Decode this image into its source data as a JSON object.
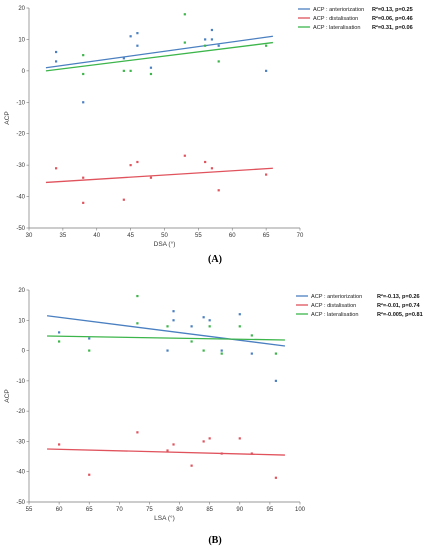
{
  "colors": {
    "anteriorization": "#4a7fc1",
    "distalisation": "#e0535d",
    "lateralisation": "#3cb54a",
    "axis": "#777777",
    "grid": "#cccccc"
  },
  "chart_data": [
    {
      "type": "scatter",
      "panel_label": "(A)",
      "xlabel": "DSA (°)",
      "ylabel": "ACP",
      "xlim": [
        30,
        70
      ],
      "ylim": [
        -50,
        20
      ],
      "xticks": [
        30,
        35,
        40,
        45,
        50,
        55,
        60,
        65,
        70
      ],
      "yticks": [
        20,
        10,
        0,
        -10,
        -20,
        -30,
        -40,
        -50
      ],
      "grid": false,
      "legend_position": "top-right",
      "series": [
        {
          "name": "ACP : anteriorization",
          "stat": "R²=0.13, p=0.25",
          "color": "#4a7fc1",
          "points": [
            [
              34,
              6
            ],
            [
              34,
              3
            ],
            [
              38,
              -10
            ],
            [
              44,
              4
            ],
            [
              45,
              11
            ],
            [
              46,
              12
            ],
            [
              46,
              8
            ],
            [
              48,
              1
            ],
            [
              56,
              10
            ],
            [
              57,
              13
            ],
            [
              57,
              10
            ],
            [
              58,
              8
            ],
            [
              65,
              0
            ]
          ],
          "fit": [
            [
              32.5,
              1
            ],
            [
              66,
              11
            ]
          ]
        },
        {
          "name": "ACP : distalisation",
          "stat": "R²=0.06, p=0.46",
          "color": "#e0535d",
          "points": [
            [
              34,
              -31
            ],
            [
              38,
              -34
            ],
            [
              38,
              -42
            ],
            [
              44,
              -41
            ],
            [
              45,
              -30
            ],
            [
              46,
              -29
            ],
            [
              48,
              -34
            ],
            [
              53,
              -27
            ],
            [
              56,
              -29
            ],
            [
              57,
              -31
            ],
            [
              58,
              -38
            ],
            [
              65,
              -33
            ]
          ],
          "fit": [
            [
              32.5,
              -35.5
            ],
            [
              66,
              -31
            ]
          ]
        },
        {
          "name": "ACP : lateralisation",
          "stat": "R²=0.31, p=0.06",
          "color": "#3cb54a",
          "points": [
            [
              38,
              5
            ],
            [
              38,
              -1
            ],
            [
              44,
              0
            ],
            [
              45,
              0
            ],
            [
              48,
              -1
            ],
            [
              53,
              18
            ],
            [
              53,
              9
            ],
            [
              56,
              8
            ],
            [
              58,
              3
            ],
            [
              65,
              8
            ]
          ],
          "fit": [
            [
              32.5,
              0
            ],
            [
              66,
              9
            ]
          ]
        }
      ]
    },
    {
      "type": "scatter",
      "panel_label": "(B)",
      "xlabel": "LSA (°)",
      "ylabel": "ACP",
      "xlim": [
        55,
        100
      ],
      "ylim": [
        -50,
        20
      ],
      "xticks": [
        55,
        60,
        65,
        70,
        75,
        80,
        85,
        90,
        95,
        100
      ],
      "yticks": [
        20,
        10,
        0,
        -10,
        -20,
        -30,
        -40,
        -50
      ],
      "grid": false,
      "legend_position": "top-right",
      "series": [
        {
          "name": "ACP : anteriorization",
          "stat": "R²=-0.13, p=0.26",
          "color": "#4a7fc1",
          "points": [
            [
              60,
              6
            ],
            [
              65,
              4
            ],
            [
              78,
              0
            ],
            [
              79,
              13
            ],
            [
              79,
              10
            ],
            [
              82,
              8
            ],
            [
              84,
              11
            ],
            [
              85,
              10
            ],
            [
              87,
              0
            ],
            [
              90,
              12
            ],
            [
              92,
              -1
            ],
            [
              96,
              -10
            ]
          ],
          "fit": [
            [
              58,
              11.5
            ],
            [
              97.5,
              1.5
            ]
          ]
        },
        {
          "name": "ACP : distalisation",
          "stat": "R²=-0.01, p=0.74",
          "color": "#e0535d",
          "points": [
            [
              60,
              -31
            ],
            [
              65,
              -41
            ],
            [
              73,
              -27
            ],
            [
              78,
              -33
            ],
            [
              79,
              -31
            ],
            [
              82,
              -38
            ],
            [
              84,
              -30
            ],
            [
              85,
              -29
            ],
            [
              87,
              -34
            ],
            [
              90,
              -29
            ],
            [
              92,
              -34
            ],
            [
              96,
              -42
            ]
          ],
          "fit": [
            [
              58,
              -32.5
            ],
            [
              97.5,
              -34.5
            ]
          ]
        },
        {
          "name": "ACP : lateralisation",
          "stat": "R²=-0.005, p=0.81",
          "color": "#3cb54a",
          "points": [
            [
              60,
              3
            ],
            [
              65,
              0
            ],
            [
              73,
              18
            ],
            [
              73,
              9
            ],
            [
              78,
              8
            ],
            [
              82,
              3
            ],
            [
              84,
              0
            ],
            [
              85,
              8
            ],
            [
              87,
              -1
            ],
            [
              90,
              8
            ],
            [
              92,
              5
            ],
            [
              96,
              -1
            ]
          ],
          "fit": [
            [
              58,
              4.8
            ],
            [
              97.5,
              3.5
            ]
          ]
        }
      ]
    }
  ]
}
